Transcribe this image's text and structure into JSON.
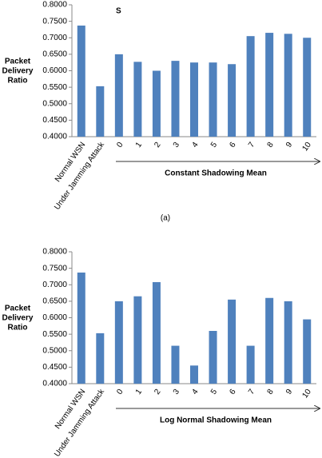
{
  "chart_data": [
    {
      "type": "bar",
      "title": "S",
      "caption": "(a)",
      "y_label": "Packet Delivery Ratio",
      "x_label": "Constant Shadowing Mean",
      "categories": [
        "Normal WSN",
        "Under Jamming Attack",
        "0",
        "1",
        "2",
        "3",
        "4",
        "5",
        "6",
        "7",
        "8",
        "9",
        "10"
      ],
      "values": [
        0.737,
        0.553,
        0.65,
        0.627,
        0.6,
        0.63,
        0.625,
        0.625,
        0.62,
        0.705,
        0.715,
        0.712,
        0.7
      ],
      "color": "#4f81bd",
      "grid": false,
      "ylim": [
        0.4,
        0.8
      ],
      "yticks": [
        {
          "value": 0.4,
          "label": "0.4000"
        },
        {
          "value": 0.45,
          "label": "0.4500"
        },
        {
          "value": 0.5,
          "label": "0.5000"
        },
        {
          "value": 0.55,
          "label": "0.5500"
        },
        {
          "value": 0.6,
          "label": "0.6000"
        },
        {
          "value": 0.65,
          "label": "0.6500"
        },
        {
          "value": 0.7,
          "label": "0.7000"
        },
        {
          "value": 0.75,
          "label": "0.7500"
        },
        {
          "value": 0.8,
          "label": "0.8000"
        }
      ]
    },
    {
      "type": "bar",
      "y_label": "Packet Delivery Ratio",
      "x_label": "Log Normal Shadowing Mean",
      "categories": [
        "Normal WSN",
        "Under Jamming Attack",
        "0",
        "1",
        "2",
        "3",
        "4",
        "5",
        "6",
        "7",
        "8",
        "9",
        "10"
      ],
      "values": [
        0.737,
        0.553,
        0.65,
        0.665,
        0.708,
        0.515,
        0.455,
        0.56,
        0.655,
        0.515,
        0.66,
        0.65,
        0.595
      ],
      "color": "#4f81bd",
      "grid": false,
      "ylim": [
        0.4,
        0.8
      ],
      "yticks": [
        {
          "value": 0.4,
          "label": "0.4000"
        },
        {
          "value": 0.45,
          "label": "0.4500"
        },
        {
          "value": 0.5,
          "label": "0.5000"
        },
        {
          "value": 0.55,
          "label": "0.5500"
        },
        {
          "value": 0.6,
          "label": "0.6000"
        },
        {
          "value": 0.65,
          "label": "0.6500"
        },
        {
          "value": 0.7,
          "label": "0.7000"
        },
        {
          "value": 0.75,
          "label": "0.7500"
        },
        {
          "value": 0.8,
          "label": "0.8000"
        }
      ]
    }
  ]
}
